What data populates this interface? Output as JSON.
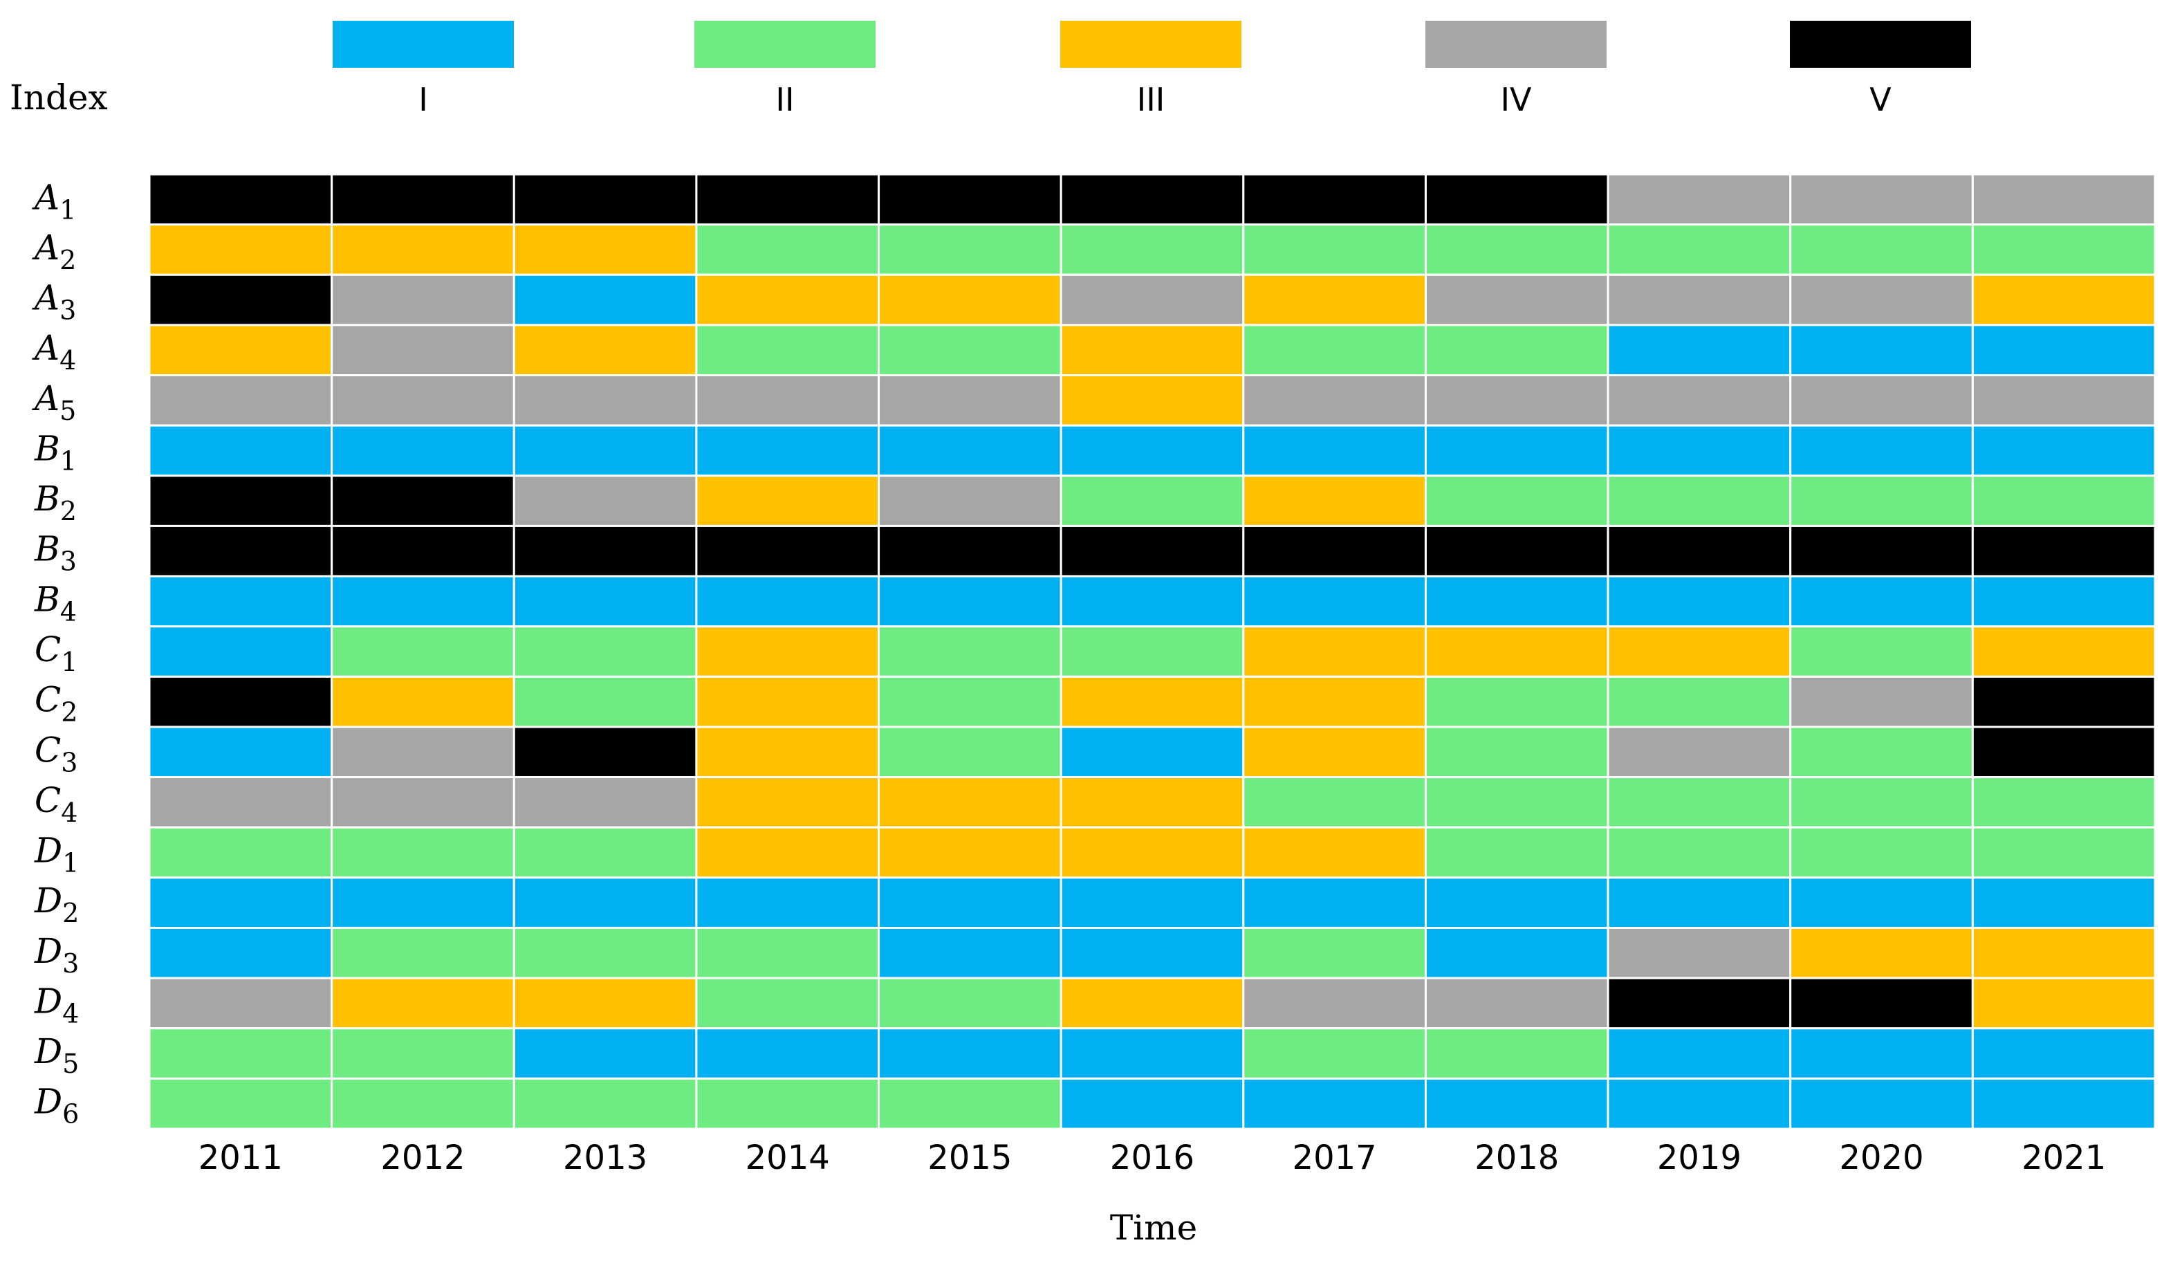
{
  "chart_data": {
    "type": "heatmap",
    "title": "",
    "xlabel": "Time",
    "legend_title": "Index",
    "legend_position": "top",
    "levels": [
      {
        "name": "I",
        "color": "#00B0F0"
      },
      {
        "name": "II",
        "color": "#6EEC82"
      },
      {
        "name": "III",
        "color": "#FFC000"
      },
      {
        "name": "IV",
        "color": "#A6A6A6"
      },
      {
        "name": "V",
        "color": "#000000"
      }
    ],
    "x": [
      "2011",
      "2012",
      "2013",
      "2014",
      "2015",
      "2016",
      "2017",
      "2018",
      "2019",
      "2020",
      "2021"
    ],
    "rows": [
      {
        "letter": "A",
        "sub": "1",
        "values": [
          "V",
          "V",
          "V",
          "V",
          "V",
          "V",
          "V",
          "V",
          "IV",
          "IV",
          "IV"
        ]
      },
      {
        "letter": "A",
        "sub": "2",
        "values": [
          "III",
          "III",
          "III",
          "II",
          "II",
          "II",
          "II",
          "II",
          "II",
          "II",
          "II"
        ]
      },
      {
        "letter": "A",
        "sub": "3",
        "values": [
          "V",
          "IV",
          "I",
          "III",
          "III",
          "IV",
          "III",
          "IV",
          "IV",
          "IV",
          "III"
        ]
      },
      {
        "letter": "A",
        "sub": "4",
        "values": [
          "III",
          "IV",
          "III",
          "II",
          "II",
          "III",
          "II",
          "II",
          "I",
          "I",
          "I"
        ]
      },
      {
        "letter": "A",
        "sub": "5",
        "values": [
          "IV",
          "IV",
          "IV",
          "IV",
          "IV",
          "III",
          "IV",
          "IV",
          "IV",
          "IV",
          "IV"
        ]
      },
      {
        "letter": "B",
        "sub": "1",
        "values": [
          "I",
          "I",
          "I",
          "I",
          "I",
          "I",
          "I",
          "I",
          "I",
          "I",
          "I"
        ]
      },
      {
        "letter": "B",
        "sub": "2",
        "values": [
          "V",
          "V",
          "IV",
          "III",
          "IV",
          "II",
          "III",
          "II",
          "II",
          "II",
          "II"
        ]
      },
      {
        "letter": "B",
        "sub": "3",
        "values": [
          "V",
          "V",
          "V",
          "V",
          "V",
          "V",
          "V",
          "V",
          "V",
          "V",
          "V"
        ]
      },
      {
        "letter": "B",
        "sub": "4",
        "values": [
          "I",
          "I",
          "I",
          "I",
          "I",
          "I",
          "I",
          "I",
          "I",
          "I",
          "I"
        ]
      },
      {
        "letter": "C",
        "sub": "1",
        "values": [
          "I",
          "II",
          "II",
          "III",
          "II",
          "II",
          "III",
          "III",
          "III",
          "II",
          "III"
        ]
      },
      {
        "letter": "C",
        "sub": "2",
        "values": [
          "V",
          "III",
          "II",
          "III",
          "II",
          "III",
          "III",
          "II",
          "II",
          "IV",
          "V"
        ]
      },
      {
        "letter": "C",
        "sub": "3",
        "values": [
          "I",
          "IV",
          "V",
          "III",
          "II",
          "I",
          "III",
          "II",
          "IV",
          "II",
          "V"
        ]
      },
      {
        "letter": "C",
        "sub": "4",
        "values": [
          "IV",
          "IV",
          "IV",
          "III",
          "III",
          "III",
          "II",
          "II",
          "II",
          "II",
          "II"
        ]
      },
      {
        "letter": "D",
        "sub": "1",
        "values": [
          "II",
          "II",
          "II",
          "III",
          "III",
          "III",
          "III",
          "II",
          "II",
          "II",
          "II"
        ]
      },
      {
        "letter": "D",
        "sub": "2",
        "values": [
          "I",
          "I",
          "I",
          "I",
          "I",
          "I",
          "I",
          "I",
          "I",
          "I",
          "I"
        ]
      },
      {
        "letter": "D",
        "sub": "3",
        "values": [
          "I",
          "II",
          "II",
          "II",
          "I",
          "I",
          "II",
          "I",
          "IV",
          "III",
          "III"
        ]
      },
      {
        "letter": "D",
        "sub": "4",
        "values": [
          "IV",
          "III",
          "III",
          "II",
          "II",
          "III",
          "IV",
          "IV",
          "V",
          "V",
          "III"
        ]
      },
      {
        "letter": "D",
        "sub": "5",
        "values": [
          "II",
          "II",
          "I",
          "I",
          "I",
          "I",
          "II",
          "II",
          "I",
          "I",
          "I"
        ]
      },
      {
        "letter": "D",
        "sub": "6",
        "values": [
          "II",
          "II",
          "II",
          "II",
          "II",
          "I",
          "I",
          "I",
          "I",
          "I",
          "I"
        ]
      }
    ]
  }
}
